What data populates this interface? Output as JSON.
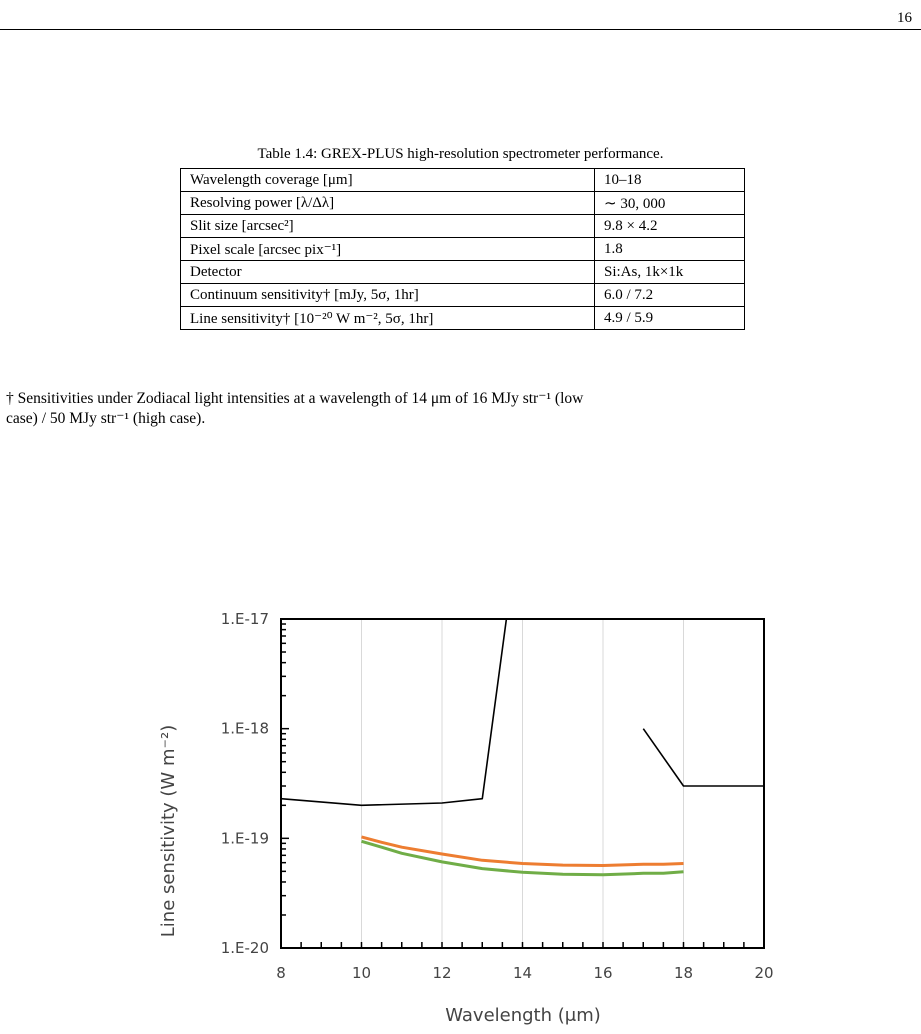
{
  "page": {
    "number": "16"
  },
  "table": {
    "caption": "Table 1.4: GREX-PLUS high-resolution spectrometer performance.",
    "rows": [
      {
        "param": "Wavelength coverage [μm]",
        "value": "10–18"
      },
      {
        "param": "Resolving power [λ/Δλ]",
        "value": "∼ 30, 000"
      },
      {
        "param": "Slit size [arcsec²]",
        "value": "9.8 × 4.2"
      },
      {
        "param": "Pixel scale [arcsec pix⁻¹]",
        "value": "1.8"
      },
      {
        "param": "Detector",
        "value": "Si:As, 1k×1k"
      },
      {
        "param": "Continuum sensitivity† [mJy, 5σ, 1hr]",
        "value": "6.0 / 7.2"
      },
      {
        "param": "Line sensitivity† [10⁻²⁰ W m⁻², 5σ, 1hr]",
        "value": "4.9 / 5.9"
      }
    ]
  },
  "footnote": {
    "line1": "† Sensitivities under Zodiacal light intensities at a wavelength of 14 μm of 16 MJy str⁻¹ (low",
    "line2": "case) / 50 MJy str⁻¹ (high case)."
  },
  "chart_data": {
    "type": "line",
    "xlabel": "Wavelength (μm)",
    "ylabel": "Line sensitivity (W m⁻²)",
    "xlim": [
      8,
      20
    ],
    "ylim": [
      1e-20,
      1e-17
    ],
    "yscale": "log",
    "x_ticks": [
      "8",
      "10",
      "12",
      "14",
      "16",
      "18",
      "20"
    ],
    "y_ticks": [
      "1.E-20",
      "1.E-19",
      "1.E-18",
      "1.E-17"
    ],
    "grid": "vertical",
    "series": [
      {
        "color": "#000000",
        "x": [
          8,
          10,
          12,
          13,
          13.6
        ],
        "y": [
          2.3e-19,
          2e-19,
          2.1e-19,
          2.3e-19,
          1e-17
        ]
      },
      {
        "color": "#000000",
        "x": [
          17,
          18,
          20
        ],
        "y": [
          1e-18,
          3e-19,
          3e-19
        ]
      },
      {
        "color": "#ED7D31",
        "x": [
          10,
          10.5,
          11,
          12,
          13,
          14,
          15,
          16,
          17,
          17.5,
          18
        ],
        "y": [
          1.03e-19,
          9.2e-20,
          8.3e-20,
          7.2e-20,
          6.3e-20,
          5.9e-20,
          5.7e-20,
          5.65e-20,
          5.8e-20,
          5.8e-20,
          5.9e-20
        ]
      },
      {
        "color": "#70AD47",
        "x": [
          10,
          10.5,
          11,
          12,
          13,
          14,
          15,
          16,
          17,
          17.5,
          18
        ],
        "y": [
          9.4e-20,
          8.3e-20,
          7.3e-20,
          6.1e-20,
          5.3e-20,
          4.9e-20,
          4.7e-20,
          4.65e-20,
          4.8e-20,
          4.8e-20,
          4.95e-20
        ]
      }
    ]
  }
}
